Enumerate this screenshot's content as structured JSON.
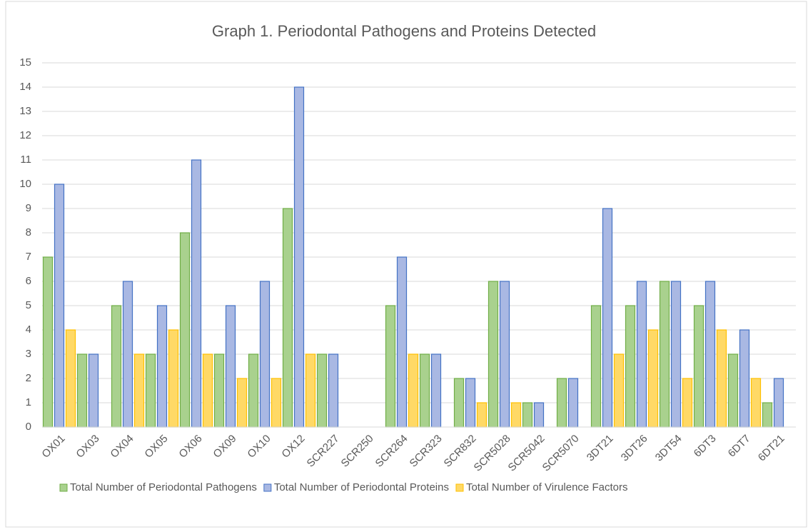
{
  "chart_data": {
    "type": "bar",
    "title": "Graph 1. Periodontal Pathogens and Proteins Detected",
    "categories": [
      "OX01",
      "OX03",
      "OX04",
      "OX05",
      "OX06",
      "OX09",
      "OX10",
      "OX12",
      "SCR227",
      "SCR250",
      "SCR264",
      "SCR323",
      "SCR832",
      "SCR5028",
      "SCR5042",
      "SCR5070",
      "3DT21",
      "3DT26",
      "3DT54",
      "6DT3",
      "6DT7",
      "6DT21"
    ],
    "series": [
      {
        "name": "Total Number of Periodontal Pathogens",
        "color": "#a9d18e",
        "stroke": "#70ad47",
        "values": [
          7,
          3,
          5,
          3,
          8,
          3,
          3,
          9,
          3,
          0,
          5,
          3,
          2,
          6,
          1,
          2,
          5,
          5,
          6,
          5,
          3,
          1
        ]
      },
      {
        "name": "Total Number of Periodontal Proteins",
        "color": "#a9b8e3",
        "stroke": "#4472c4",
        "values": [
          10,
          3,
          6,
          5,
          11,
          5,
          6,
          14,
          3,
          0,
          7,
          3,
          2,
          6,
          1,
          2,
          9,
          6,
          6,
          6,
          4,
          2
        ]
      },
      {
        "name": "Total Number of Virulence Factors",
        "color": "#ffd966",
        "stroke": "#ffc000",
        "values": [
          4,
          0,
          3,
          4,
          3,
          2,
          2,
          3,
          0,
          0,
          3,
          0,
          1,
          1,
          0,
          0,
          3,
          4,
          2,
          4,
          2,
          0
        ]
      }
    ],
    "ylim": [
      0,
      15
    ],
    "yticks": [
      0,
      1,
      2,
      3,
      4,
      5,
      6,
      7,
      8,
      9,
      10,
      11,
      12,
      13,
      14,
      15
    ],
    "grid": true,
    "legend": "bottom"
  }
}
